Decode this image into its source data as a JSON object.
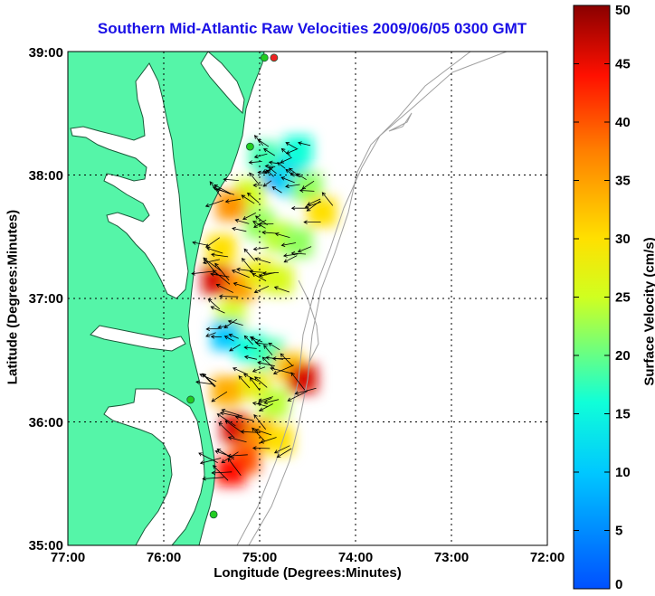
{
  "title": "Southern Mid-Atlantic Raw Velocities 2009/06/05 0300 GMT",
  "xlabel": "Longitude (Degrees:Minutes)",
  "ylabel": "Latitude (Degrees:Minutes)",
  "colorbar": {
    "label": "Surface Velocity (cm/s)",
    "range": [
      0,
      50
    ],
    "ticks": [
      "0",
      "5",
      "10",
      "15",
      "20",
      "25",
      "30",
      "35",
      "40",
      "45",
      "50"
    ]
  },
  "map": {
    "lon_range": [
      -77,
      -72
    ],
    "lat_range": [
      35,
      39
    ],
    "x_ticks": [
      "77:00",
      "76:00",
      "75:00",
      "74:00",
      "73:00",
      "72:00"
    ],
    "y_ticks": [
      "35:00",
      "36:00",
      "37:00",
      "38:00",
      "39:00"
    ],
    "grid": "dotted",
    "land_color": "#55f5a8",
    "coast_color": "#1a5a3a",
    "bathymetry_color": "#a0a0a0"
  },
  "colors": {
    "title": "#1a10e6",
    "stations": [
      "#22cc22",
      "#ee2222"
    ]
  },
  "chart_data": {
    "type": "heatmap",
    "title": "Southern Mid-Atlantic Raw Velocities 2009/06/05 0300 GMT",
    "xlabel": "Longitude (Degrees:Minutes)",
    "ylabel": "Latitude (Degrees:Minutes)",
    "xlim": [
      -77,
      -72
    ],
    "ylim": [
      35,
      39
    ],
    "value_range": [
      0,
      50
    ],
    "units": "cm/s",
    "stations": [
      {
        "lon": -74.85,
        "lat": 38.95,
        "color": "#ee2222"
      },
      {
        "lon": -74.95,
        "lat": 38.95,
        "color": "#22cc22"
      },
      {
        "lon": -75.1,
        "lat": 38.23,
        "color": "#22cc22"
      },
      {
        "lon": -75.72,
        "lat": 36.18,
        "color": "#22cc22"
      },
      {
        "lon": -75.48,
        "lat": 35.25,
        "color": "#22cc22"
      }
    ],
    "velocity_cells": [
      {
        "lon": -74.85,
        "lat": 38.0,
        "speed": 6
      },
      {
        "lon": -74.75,
        "lat": 38.05,
        "speed": 8
      },
      {
        "lon": -74.65,
        "lat": 37.95,
        "speed": 12
      },
      {
        "lon": -74.95,
        "lat": 38.15,
        "speed": 18
      },
      {
        "lon": -74.6,
        "lat": 38.2,
        "speed": 16
      },
      {
        "lon": -74.5,
        "lat": 37.9,
        "speed": 22
      },
      {
        "lon": -74.35,
        "lat": 37.7,
        "speed": 30
      },
      {
        "lon": -75.1,
        "lat": 37.85,
        "speed": 25
      },
      {
        "lon": -75.3,
        "lat": 37.75,
        "speed": 36
      },
      {
        "lon": -75.0,
        "lat": 37.6,
        "speed": 22
      },
      {
        "lon": -74.8,
        "lat": 37.5,
        "speed": 24
      },
      {
        "lon": -74.6,
        "lat": 37.45,
        "speed": 22
      },
      {
        "lon": -75.4,
        "lat": 37.4,
        "speed": 30
      },
      {
        "lon": -75.45,
        "lat": 37.15,
        "speed": 46
      },
      {
        "lon": -75.2,
        "lat": 37.1,
        "speed": 36
      },
      {
        "lon": -75.0,
        "lat": 37.2,
        "speed": 28
      },
      {
        "lon": -74.8,
        "lat": 37.15,
        "speed": 26
      },
      {
        "lon": -75.3,
        "lat": 36.85,
        "speed": 25
      },
      {
        "lon": -75.35,
        "lat": 36.7,
        "speed": 10
      },
      {
        "lon": -75.1,
        "lat": 36.6,
        "speed": 16
      },
      {
        "lon": -74.9,
        "lat": 36.55,
        "speed": 18
      },
      {
        "lon": -74.7,
        "lat": 36.45,
        "speed": 32
      },
      {
        "lon": -74.55,
        "lat": 36.35,
        "speed": 46
      },
      {
        "lon": -75.05,
        "lat": 36.3,
        "speed": 28
      },
      {
        "lon": -75.35,
        "lat": 36.25,
        "speed": 34
      },
      {
        "lon": -74.85,
        "lat": 36.15,
        "speed": 24
      },
      {
        "lon": -75.25,
        "lat": 35.95,
        "speed": 46
      },
      {
        "lon": -75.0,
        "lat": 35.9,
        "speed": 36
      },
      {
        "lon": -74.8,
        "lat": 35.85,
        "speed": 30
      },
      {
        "lon": -75.15,
        "lat": 35.7,
        "speed": 40
      },
      {
        "lon": -75.3,
        "lat": 35.6,
        "speed": 44
      }
    ]
  }
}
